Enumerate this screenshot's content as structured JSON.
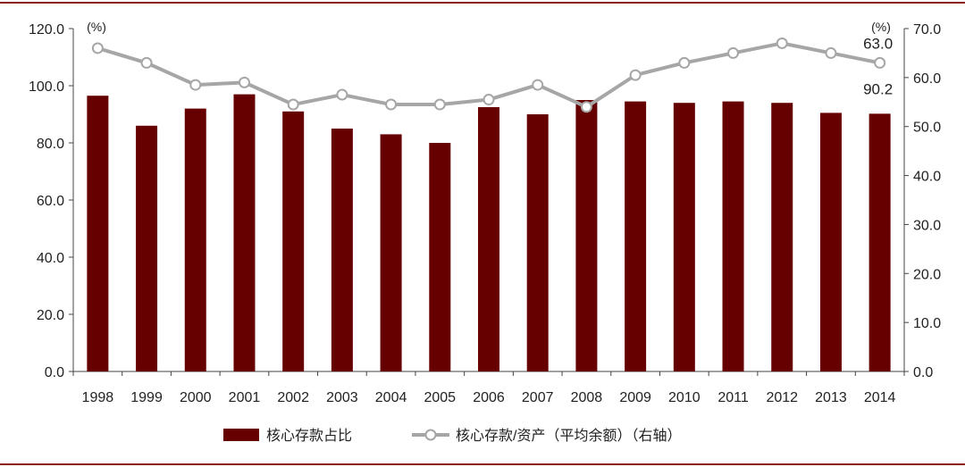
{
  "chart_data": {
    "type": "bar",
    "categories": [
      "1998",
      "1999",
      "2000",
      "2001",
      "2002",
      "2003",
      "2004",
      "2005",
      "2006",
      "2007",
      "2008",
      "2009",
      "2010",
      "2011",
      "2012",
      "2013",
      "2014"
    ],
    "series": [
      {
        "name": "核心存款占比",
        "type": "bar",
        "axis": "left",
        "color": "#660000",
        "values": [
          96.5,
          86.0,
          92.0,
          97.0,
          91.0,
          85.0,
          83.0,
          80.0,
          92.5,
          90.0,
          95.0,
          94.5,
          94.0,
          94.5,
          94.0,
          90.5,
          90.2
        ]
      },
      {
        "name": "核心存款/资产（平均余额）（右轴）",
        "type": "line",
        "axis": "right",
        "color": "#a6a6a6",
        "values": [
          66.0,
          63.0,
          58.5,
          59.0,
          54.5,
          56.5,
          54.5,
          54.5,
          55.5,
          58.5,
          54.0,
          60.5,
          63.0,
          65.0,
          67.0,
          65.0,
          63.0
        ]
      }
    ],
    "y_left": {
      "range": [
        0,
        120
      ],
      "ticks": [
        "0.0",
        "20.0",
        "40.0",
        "60.0",
        "80.0",
        "100.0",
        "120.0"
      ],
      "unit": "(%)"
    },
    "y_right": {
      "range": [
        0,
        70
      ],
      "ticks": [
        "0.0",
        "10.0",
        "20.0",
        "30.0",
        "40.0",
        "50.0",
        "60.0",
        "70.0"
      ],
      "unit": "(%)"
    },
    "annotations": [
      "63.0",
      "90.2"
    ],
    "grid": false,
    "legend_position": "bottom"
  },
  "colors": {
    "bar": "#660000",
    "line": "#a6a6a6",
    "frame": "#8b1a1a"
  }
}
